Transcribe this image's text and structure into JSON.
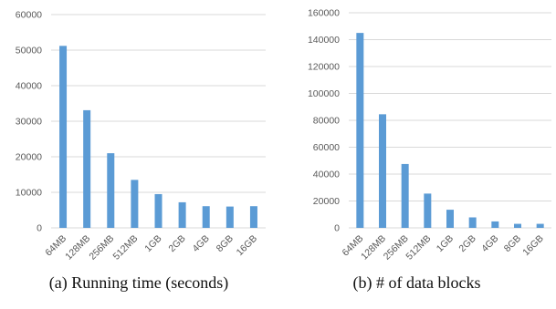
{
  "chart_data": [
    {
      "type": "bar",
      "caption": "(a) Running time (seconds)",
      "categories": [
        "64MB",
        "128MB",
        "256MB",
        "512MB",
        "1GB",
        "2GB",
        "4GB",
        "8GB",
        "16GB"
      ],
      "values": [
        51200,
        33100,
        21000,
        13500,
        9500,
        7200,
        6100,
        6000,
        6100
      ],
      "ylim": [
        0,
        60000
      ],
      "yticks": [
        0,
        10000,
        20000,
        30000,
        40000,
        50000,
        60000
      ],
      "grid": true,
      "bar_color": "#5B9BD5"
    },
    {
      "type": "bar",
      "caption": "(b) # of data blocks",
      "categories": [
        "64MB",
        "128MB",
        "256MB",
        "512MB",
        "1GB",
        "2GB",
        "4GB",
        "8GB",
        "16GB"
      ],
      "values": [
        145000,
        84500,
        47500,
        25500,
        13500,
        7800,
        4800,
        3000,
        3000
      ],
      "ylim": [
        0,
        160000
      ],
      "yticks": [
        0,
        20000,
        40000,
        60000,
        80000,
        100000,
        120000,
        140000,
        160000
      ],
      "grid": true,
      "bar_color": "#5B9BD5"
    }
  ]
}
